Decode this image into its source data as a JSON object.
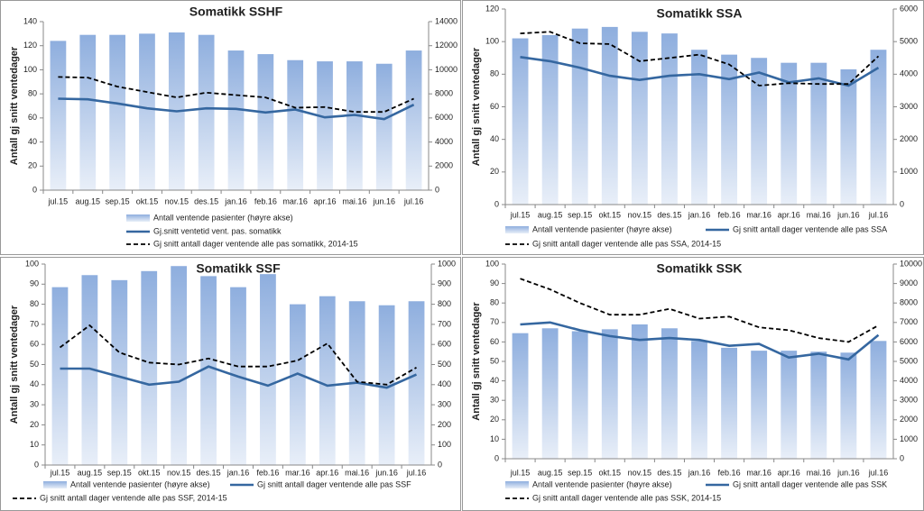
{
  "chart_data": [
    {
      "type": "combo",
      "title": "Somatikk SSHF",
      "ylabel": "Antall gj snitt ventedager",
      "categories": [
        "jul.15",
        "aug.15",
        "sep.15",
        "okt.15",
        "nov.15",
        "des.15",
        "jan.16",
        "feb.16",
        "mar.16",
        "apr.16",
        "mai.16",
        "jun.16",
        "jul.16"
      ],
      "ylim": [
        0,
        140
      ],
      "yticks": [
        0,
        20,
        40,
        60,
        80,
        100,
        120,
        140
      ],
      "y2lim": [
        0,
        14000
      ],
      "y2ticks": [
        0,
        2000,
        4000,
        6000,
        8000,
        10000,
        12000,
        14000
      ],
      "series": [
        {
          "name": "Antall ventende pasienter (høyre akse)",
          "type": "bar",
          "axis": "y2",
          "color": "#8eaede",
          "values": [
            12400,
            12900,
            12900,
            13000,
            13100,
            12900,
            11600,
            11300,
            10800,
            10700,
            10700,
            10500,
            11600
          ]
        },
        {
          "name": "Gj.snitt ventetid vent. pas. somatikk",
          "type": "line",
          "dash": false,
          "color": "#3567a0",
          "values": [
            76,
            75.5,
            72,
            68,
            65.5,
            68,
            67.5,
            64.5,
            67,
            60.5,
            62.5,
            59,
            71
          ]
        },
        {
          "name": "Gj snitt antall dager ventende alle pas somatikk, 2014-15",
          "type": "line",
          "dash": true,
          "color": "#000000",
          "values": [
            94,
            93.5,
            86,
            81.5,
            77,
            81,
            79,
            77,
            68.5,
            69,
            65,
            65,
            76
          ]
        }
      ]
    },
    {
      "type": "combo",
      "title": "Somatikk SSA",
      "ylabel": "Antall gj snitt ventedager",
      "categories": [
        "jul.15",
        "aug.15",
        "sep.15",
        "okt.15",
        "nov.15",
        "des.15",
        "jan.16",
        "feb.16",
        "mar.16",
        "apr.16",
        "mai.16",
        "jun.16",
        "jul.16"
      ],
      "ylim": [
        0,
        120
      ],
      "yticks": [
        0,
        20,
        40,
        60,
        80,
        100,
        120
      ],
      "y2lim": [
        0,
        6000
      ],
      "y2ticks": [
        0,
        1000,
        2000,
        3000,
        4000,
        5000,
        6000
      ],
      "series": [
        {
          "name": "Antall ventende pasienter (høyre akse)",
          "type": "bar",
          "axis": "y2",
          "color": "#8eaede",
          "values": [
            5100,
            5200,
            5400,
            5450,
            5300,
            5250,
            4750,
            4600,
            4500,
            4350,
            4350,
            4150,
            4750
          ]
        },
        {
          "name": "Gj snitt antall dager ventende alle pas SSA",
          "type": "line",
          "dash": false,
          "color": "#3567a0",
          "values": [
            90.5,
            88,
            84,
            79,
            76.5,
            79,
            80,
            77,
            81,
            75,
            77.5,
            73,
            84
          ]
        },
        {
          "name": "Gj snitt antall dager ventende alle pas SSA, 2014-15",
          "type": "line",
          "dash": true,
          "color": "#000000",
          "values": [
            105,
            106,
            99,
            98.5,
            88,
            90,
            92,
            86,
            73,
            74.5,
            74,
            74,
            91
          ]
        }
      ]
    },
    {
      "type": "combo",
      "title": "Somatikk SSF",
      "ylabel": "Antall gj snitt ventedager",
      "categories": [
        "jul.15",
        "aug.15",
        "sep.15",
        "okt.15",
        "nov.15",
        "des.15",
        "jan.16",
        "feb.16",
        "mar.16",
        "apr.16",
        "mai.16",
        "jun.16",
        "jul.16"
      ],
      "ylim": [
        0,
        100
      ],
      "yticks": [
        0,
        10,
        20,
        30,
        40,
        50,
        60,
        70,
        80,
        90,
        100
      ],
      "y2lim": [
        0,
        1000
      ],
      "y2ticks": [
        0,
        100,
        200,
        300,
        400,
        500,
        600,
        700,
        800,
        900,
        1000
      ],
      "series": [
        {
          "name": "Antall ventende pasienter (høyre akse)",
          "type": "bar",
          "axis": "y2",
          "color": "#8eaede",
          "values": [
            885,
            945,
            920,
            965,
            990,
            940,
            885,
            950,
            800,
            840,
            815,
            795,
            815
          ]
        },
        {
          "name": "Gj snitt antall dager ventende alle pas SSF",
          "type": "line",
          "dash": false,
          "color": "#3567a0",
          "values": [
            48,
            48,
            44,
            40,
            41.5,
            49,
            44,
            39.5,
            45.5,
            39.5,
            41,
            38.5,
            45
          ]
        },
        {
          "name": "Gj snitt antall dager ventende alle pas SSF, 2014-15",
          "type": "line",
          "dash": true,
          "color": "#000000",
          "values": [
            58.5,
            69.5,
            56,
            51,
            50,
            53,
            49,
            49,
            52,
            60.5,
            41.5,
            40,
            48.5
          ]
        }
      ]
    },
    {
      "type": "combo",
      "title": "Somatikk SSK",
      "ylabel": "Antall gj snitt ventedager",
      "categories": [
        "jul.15",
        "aug.15",
        "sep.15",
        "okt.15",
        "nov.15",
        "des.15",
        "jan.16",
        "feb.16",
        "mar.16",
        "apr.16",
        "mai.16",
        "jun.16",
        "jul.16"
      ],
      "ylim": [
        0,
        100
      ],
      "yticks": [
        0,
        10,
        20,
        30,
        40,
        50,
        60,
        70,
        80,
        90,
        100
      ],
      "y2lim": [
        0,
        10000
      ],
      "y2ticks": [
        0,
        1000,
        2000,
        3000,
        4000,
        5000,
        6000,
        7000,
        8000,
        9000,
        10000
      ],
      "series": [
        {
          "name": "Antall ventende pasienter (høyre akse)",
          "type": "bar",
          "axis": "y2",
          "color": "#8eaede",
          "values": [
            6450,
            6700,
            6550,
            6650,
            6900,
            6700,
            6050,
            5700,
            5550,
            5550,
            5500,
            5450,
            6050
          ]
        },
        {
          "name": "Gj snitt antall dager ventende alle pas SSK",
          "type": "line",
          "dash": false,
          "color": "#3567a0",
          "values": [
            69,
            70,
            66,
            63,
            61,
            62,
            61,
            58,
            59,
            52,
            54,
            51,
            63.5
          ]
        },
        {
          "name": "Gj snitt antall dager ventende alle pas SSK, 2014-15",
          "type": "line",
          "dash": true,
          "color": "#000000",
          "values": [
            92.5,
            87,
            80,
            74,
            74,
            77,
            72,
            73,
            67.5,
            66,
            62,
            60,
            68.5
          ]
        }
      ]
    }
  ]
}
